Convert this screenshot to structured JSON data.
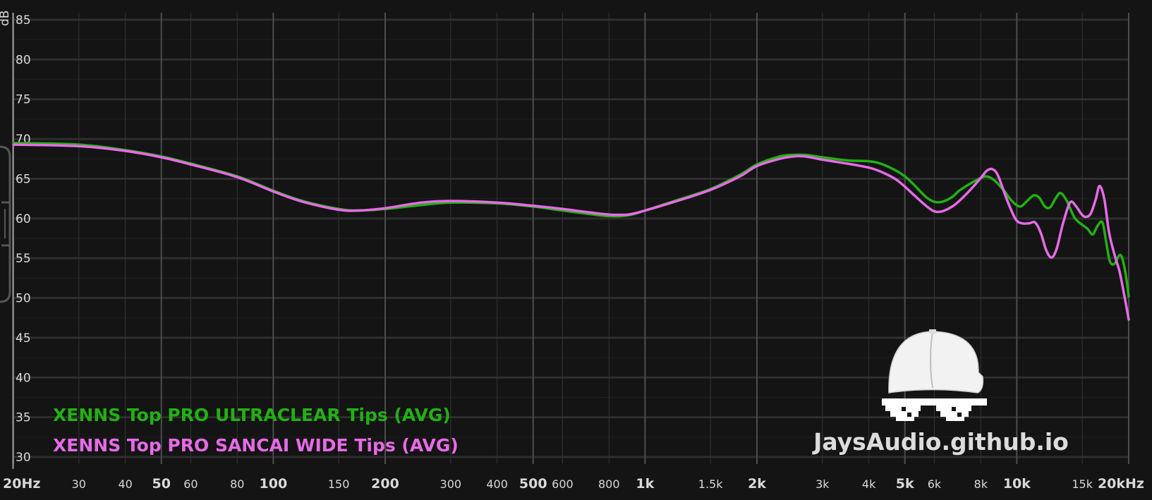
{
  "chart_data": {
    "type": "line",
    "title": "",
    "ylabel": "dB",
    "xlabel": "",
    "xscale": "log",
    "xlim": [
      20,
      20000
    ],
    "ylim": [
      30,
      85
    ],
    "grid": true,
    "legend_position": "bottom-left",
    "y_ticks": [
      85,
      80,
      75,
      70,
      65,
      60,
      55,
      50,
      45,
      40,
      35,
      30
    ],
    "x_ticks": [
      {
        "value": 20,
        "label": "20Hz",
        "major": true
      },
      {
        "value": 30,
        "label": "30",
        "major": false
      },
      {
        "value": 40,
        "label": "40",
        "major": false
      },
      {
        "value": 50,
        "label": "50",
        "major": true
      },
      {
        "value": 60,
        "label": "60",
        "major": false
      },
      {
        "value": 80,
        "label": "80",
        "major": false
      },
      {
        "value": 100,
        "label": "100",
        "major": true
      },
      {
        "value": 150,
        "label": "150",
        "major": false
      },
      {
        "value": 200,
        "label": "200",
        "major": true
      },
      {
        "value": 300,
        "label": "300",
        "major": false
      },
      {
        "value": 400,
        "label": "400",
        "major": false
      },
      {
        "value": 500,
        "label": "500",
        "major": true
      },
      {
        "value": 600,
        "label": "600",
        "major": false
      },
      {
        "value": 800,
        "label": "800",
        "major": false
      },
      {
        "value": 1000,
        "label": "1k",
        "major": true
      },
      {
        "value": 1500,
        "label": "1.5k",
        "major": false
      },
      {
        "value": 2000,
        "label": "2k",
        "major": true
      },
      {
        "value": 3000,
        "label": "3k",
        "major": false
      },
      {
        "value": 4000,
        "label": "4k",
        "major": false
      },
      {
        "value": 5000,
        "label": "5k",
        "major": true
      },
      {
        "value": 6000,
        "label": "6k",
        "major": false
      },
      {
        "value": 8000,
        "label": "8k",
        "major": false
      },
      {
        "value": 10000,
        "label": "10k",
        "major": true
      },
      {
        "value": 15000,
        "label": "15k",
        "major": false
      },
      {
        "value": 20000,
        "label": "20kHz",
        "major": true
      }
    ],
    "series": [
      {
        "name": "XENNS Top PRO ULTRACLEAR Tips (AVG)",
        "color": "#22b014",
        "points": [
          [
            20,
            69.5
          ],
          [
            30,
            69.3
          ],
          [
            40,
            68.6
          ],
          [
            50,
            67.8
          ],
          [
            60,
            66.9
          ],
          [
            80,
            65.3
          ],
          [
            100,
            63.5
          ],
          [
            120,
            62.2
          ],
          [
            150,
            61.2
          ],
          [
            170,
            61.0
          ],
          [
            200,
            61.2
          ],
          [
            250,
            61.7
          ],
          [
            300,
            62.0
          ],
          [
            400,
            61.9
          ],
          [
            500,
            61.5
          ],
          [
            600,
            61.0
          ],
          [
            700,
            60.6
          ],
          [
            800,
            60.3
          ],
          [
            900,
            60.4
          ],
          [
            1000,
            61.0
          ],
          [
            1200,
            62.2
          ],
          [
            1500,
            63.7
          ],
          [
            1800,
            65.5
          ],
          [
            2000,
            66.8
          ],
          [
            2300,
            67.8
          ],
          [
            2500,
            68.0
          ],
          [
            2700,
            68.0
          ],
          [
            3000,
            67.7
          ],
          [
            3500,
            67.3
          ],
          [
            4000,
            67.2
          ],
          [
            4300,
            66.9
          ],
          [
            4700,
            66.1
          ],
          [
            5000,
            65.3
          ],
          [
            5300,
            64.2
          ],
          [
            5700,
            62.7
          ],
          [
            6000,
            62.1
          ],
          [
            6300,
            62.1
          ],
          [
            6700,
            62.7
          ],
          [
            7000,
            63.5
          ],
          [
            7500,
            64.4
          ],
          [
            8000,
            65.1
          ],
          [
            8300,
            65.3
          ],
          [
            8700,
            64.8
          ],
          [
            9200,
            63.6
          ],
          [
            9700,
            62.2
          ],
          [
            10200,
            61.5
          ],
          [
            10600,
            62.1
          ],
          [
            11100,
            62.9
          ],
          [
            11500,
            62.6
          ],
          [
            11900,
            61.5
          ],
          [
            12300,
            61.4
          ],
          [
            12700,
            62.5
          ],
          [
            13100,
            63.2
          ],
          [
            13600,
            62.3
          ],
          [
            14300,
            60.1
          ],
          [
            15000,
            59.2
          ],
          [
            15500,
            58.7
          ],
          [
            16000,
            58.0
          ],
          [
            16500,
            59.1
          ],
          [
            17000,
            59.5
          ],
          [
            17400,
            57.0
          ],
          [
            17800,
            54.6
          ],
          [
            18300,
            54.3
          ],
          [
            18900,
            55.4
          ],
          [
            19300,
            54.7
          ],
          [
            19700,
            52.5
          ],
          [
            20000,
            50.2
          ]
        ]
      },
      {
        "name": "XENNS Top PRO SANCAI WIDE Tips (AVG)",
        "color": "#e66be6",
        "points": [
          [
            20,
            69.3
          ],
          [
            30,
            69.1
          ],
          [
            40,
            68.5
          ],
          [
            50,
            67.7
          ],
          [
            60,
            66.8
          ],
          [
            80,
            65.2
          ],
          [
            100,
            63.4
          ],
          [
            120,
            62.1
          ],
          [
            150,
            61.1
          ],
          [
            170,
            61.0
          ],
          [
            200,
            61.3
          ],
          [
            250,
            62.0
          ],
          [
            300,
            62.2
          ],
          [
            400,
            62.0
          ],
          [
            500,
            61.6
          ],
          [
            600,
            61.2
          ],
          [
            700,
            60.8
          ],
          [
            800,
            60.5
          ],
          [
            900,
            60.5
          ],
          [
            1000,
            61.0
          ],
          [
            1200,
            62.1
          ],
          [
            1500,
            63.6
          ],
          [
            1800,
            65.3
          ],
          [
            2000,
            66.6
          ],
          [
            2300,
            67.5
          ],
          [
            2500,
            67.8
          ],
          [
            2700,
            67.8
          ],
          [
            3000,
            67.4
          ],
          [
            3500,
            66.9
          ],
          [
            4000,
            66.4
          ],
          [
            4300,
            65.9
          ],
          [
            4700,
            65.0
          ],
          [
            5000,
            64.0
          ],
          [
            5300,
            62.9
          ],
          [
            5700,
            61.6
          ],
          [
            6000,
            60.9
          ],
          [
            6300,
            60.9
          ],
          [
            6700,
            61.5
          ],
          [
            7000,
            62.2
          ],
          [
            7500,
            63.6
          ],
          [
            8000,
            65.1
          ],
          [
            8300,
            66.0
          ],
          [
            8600,
            66.2
          ],
          [
            8900,
            65.4
          ],
          [
            9400,
            62.4
          ],
          [
            9900,
            60.0
          ],
          [
            10300,
            59.4
          ],
          [
            10800,
            59.4
          ],
          [
            11200,
            59.5
          ],
          [
            11600,
            58.2
          ],
          [
            12000,
            56.0
          ],
          [
            12400,
            55.1
          ],
          [
            12800,
            56.2
          ],
          [
            13300,
            59.3
          ],
          [
            13900,
            62.0
          ],
          [
            14400,
            61.6
          ],
          [
            14900,
            60.6
          ],
          [
            15300,
            60.2
          ],
          [
            15800,
            60.6
          ],
          [
            16300,
            62.4
          ],
          [
            16700,
            64.1
          ],
          [
            17200,
            62.4
          ],
          [
            17700,
            58.3
          ],
          [
            18300,
            55.5
          ],
          [
            18900,
            53.3
          ],
          [
            19500,
            50.1
          ],
          [
            20000,
            47.3
          ]
        ]
      }
    ]
  },
  "watermark": {
    "text": "JaysAudio.github.io",
    "icon": "cap-with-pixel-sunglasses-icon"
  }
}
